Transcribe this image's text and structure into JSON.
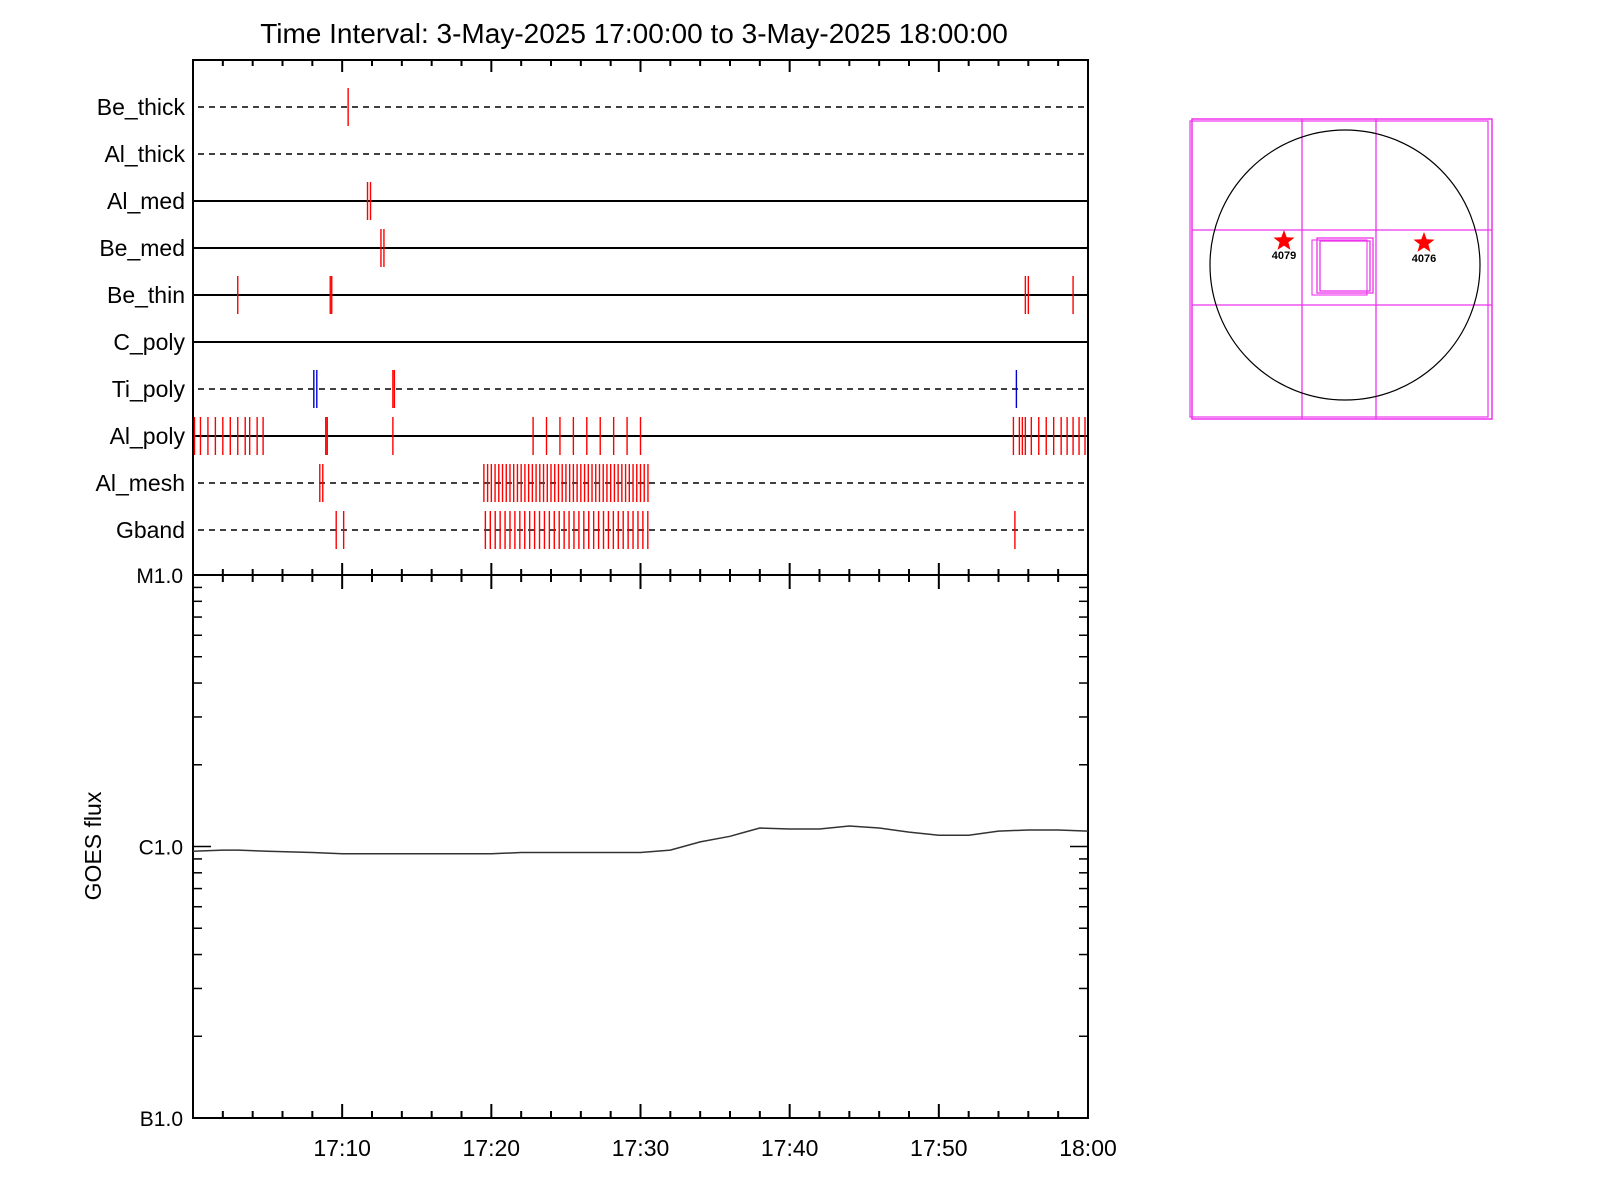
{
  "title": "Time Interval:  3-May-2025 17:00:00 to  3-May-2025 18:00:00",
  "colors": {
    "red": "#ff0000",
    "blue": "#0000cc",
    "magenta": "#ee33ee",
    "axis": "#000000",
    "flux": "#333333"
  },
  "chart_data": [
    {
      "type": "timeline",
      "name": "detector-states",
      "xlim": [
        "17:00",
        "18:00"
      ],
      "minute_ticks": [
        0,
        10,
        20,
        30,
        40,
        50,
        60
      ],
      "rows": [
        {
          "label": "Be_thick",
          "line": "dashed",
          "marks": [
            {
              "t": 10.4,
              "color": "red"
            }
          ]
        },
        {
          "label": "Al_thick",
          "line": "dashed",
          "marks": []
        },
        {
          "label": "Al_med",
          "line": "solid",
          "marks": [
            {
              "t": 11.7,
              "color": "red"
            },
            {
              "t": 11.9,
              "color": "red"
            }
          ]
        },
        {
          "label": "Be_med",
          "line": "solid",
          "marks": [
            {
              "t": 12.6,
              "color": "red"
            },
            {
              "t": 12.8,
              "color": "red"
            }
          ]
        },
        {
          "label": "Be_thin",
          "line": "solid",
          "marks": [
            {
              "t": 3.0,
              "color": "red"
            },
            {
              "t": 9.2,
              "color": "red"
            },
            {
              "t": 9.3,
              "color": "red"
            },
            {
              "t": 55.8,
              "color": "red"
            },
            {
              "t": 56.0,
              "color": "red"
            },
            {
              "t": 59.0,
              "color": "red"
            }
          ]
        },
        {
          "label": "C_poly",
          "line": "solid",
          "marks": []
        },
        {
          "label": "Ti_poly",
          "line": "dashed",
          "marks": [
            {
              "t": 8.1,
              "color": "blue"
            },
            {
              "t": 8.3,
              "color": "blue"
            },
            {
              "t": 13.4,
              "color": "red"
            },
            {
              "t": 13.5,
              "color": "red"
            },
            {
              "t": 55.2,
              "color": "blue"
            }
          ]
        },
        {
          "label": "Al_poly",
          "line": "solid",
          "marks": [
            {
              "t": 0.1,
              "color": "red"
            },
            {
              "t": 0.5,
              "color": "red"
            },
            {
              "t": 1.0,
              "color": "red"
            },
            {
              "t": 1.5,
              "color": "red"
            },
            {
              "t": 2.0,
              "color": "red"
            },
            {
              "t": 2.5,
              "color": "red"
            },
            {
              "t": 3.0,
              "color": "red"
            },
            {
              "t": 3.5,
              "color": "red"
            },
            {
              "t": 3.8,
              "color": "red"
            },
            {
              "t": 4.3,
              "color": "red"
            },
            {
              "t": 4.7,
              "color": "red"
            },
            {
              "t": 8.9,
              "color": "red"
            },
            {
              "t": 9.0,
              "color": "red"
            },
            {
              "t": 13.4,
              "color": "red"
            },
            {
              "t": 22.8,
              "color": "red"
            },
            {
              "t": 23.7,
              "color": "red"
            },
            {
              "t": 24.6,
              "color": "red"
            },
            {
              "t": 25.5,
              "color": "red"
            },
            {
              "t": 26.4,
              "color": "red"
            },
            {
              "t": 27.3,
              "color": "red"
            },
            {
              "t": 28.2,
              "color": "red"
            },
            {
              "t": 29.1,
              "color": "red"
            },
            {
              "t": 30.0,
              "color": "red"
            },
            {
              "t": 55.0,
              "color": "red"
            },
            {
              "t": 55.4,
              "color": "red"
            },
            {
              "t": 55.6,
              "color": "red"
            },
            {
              "t": 55.8,
              "color": "red"
            },
            {
              "t": 56.2,
              "color": "red"
            },
            {
              "t": 56.7,
              "color": "red"
            },
            {
              "t": 57.2,
              "color": "red"
            },
            {
              "t": 57.7,
              "color": "red"
            },
            {
              "t": 58.2,
              "color": "red"
            },
            {
              "t": 58.6,
              "color": "red"
            },
            {
              "t": 59.0,
              "color": "red"
            },
            {
              "t": 59.4,
              "color": "red"
            },
            {
              "t": 59.8,
              "color": "red"
            }
          ]
        },
        {
          "label": "Al_mesh",
          "line": "dashed",
          "marks": [
            {
              "t": 8.5,
              "color": "red"
            },
            {
              "t": 8.7,
              "color": "red"
            },
            {
              "range": [
                19.5,
                30.6
              ],
              "step": 0.25,
              "color": "red"
            }
          ]
        },
        {
          "label": "Gband",
          "line": "dashed",
          "marks": [
            {
              "t": 9.6,
              "color": "red"
            },
            {
              "t": 10.1,
              "color": "red"
            },
            {
              "range": [
                19.6,
                30.8
              ],
              "step": 0.33,
              "color": "red"
            },
            {
              "t": 55.1,
              "color": "red"
            }
          ]
        }
      ]
    },
    {
      "type": "line",
      "name": "goes-flux",
      "ylabel": "GOES flux",
      "ytick_labels": [
        "M1.0",
        "C1.0",
        "B1.0"
      ],
      "y_scale": "log",
      "ylim": [
        1e-07,
        1e-05
      ],
      "xtick_labels": [
        "17:10",
        "17:20",
        "17:30",
        "17:40",
        "17:50",
        "18:00"
      ],
      "x_minutes": [
        0,
        2,
        3,
        5,
        8,
        10,
        15,
        20,
        22,
        25,
        30,
        32,
        34,
        36,
        37,
        38,
        40,
        42,
        44,
        46,
        48,
        50,
        52,
        54,
        56,
        58,
        60
      ],
      "y": [
        9.6e-07,
        9.7e-07,
        9.7e-07,
        9.6e-07,
        9.5e-07,
        9.4e-07,
        9.4e-07,
        9.4e-07,
        9.5e-07,
        9.5e-07,
        9.5e-07,
        9.7e-07,
        1.04e-06,
        1.09e-06,
        1.13e-06,
        1.17e-06,
        1.16e-06,
        1.16e-06,
        1.19e-06,
        1.17e-06,
        1.13e-06,
        1.1e-06,
        1.1e-06,
        1.14e-06,
        1.15e-06,
        1.15e-06,
        1.14e-06
      ]
    },
    {
      "type": "diagram",
      "name": "sun-map",
      "stars": [
        {
          "label": "4079",
          "color": "red"
        },
        {
          "label": "4076",
          "color": "red"
        }
      ]
    }
  ]
}
